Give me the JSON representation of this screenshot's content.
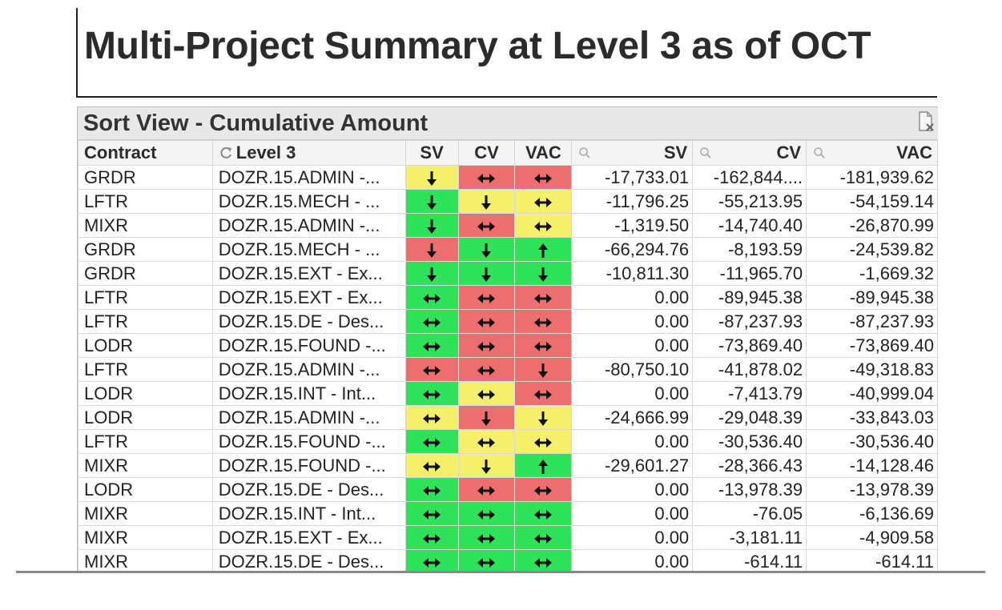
{
  "report": {
    "title": "Multi-Project Summary at Level 3 as of OCT"
  },
  "panel": {
    "caption": "Sort View - Cumulative Amount",
    "export_icon": "export-excel-icon"
  },
  "table": {
    "headers": {
      "contract": "Contract",
      "level3": "Level 3",
      "sv_ind": "SV",
      "cv_ind": "CV",
      "vac_ind": "VAC",
      "sv": "SV",
      "cv": "CV",
      "vac": "VAC"
    },
    "colors": {
      "green": "#2ee35a",
      "red": "#ec6e6e",
      "yellow": "#f5f06a"
    },
    "rows": [
      {
        "contract": "GRDR",
        "level3": "DOZR.15.ADMIN -...",
        "sv_ind": {
          "color": "yellow",
          "icon": "down-arrow-icon"
        },
        "cv_ind": {
          "color": "red",
          "icon": "left-right-arrow-icon"
        },
        "vac_ind": {
          "color": "red",
          "icon": "left-right-arrow-icon"
        },
        "sv": "-17,733.01",
        "cv": "-162,844....",
        "vac": "-181,939.62"
      },
      {
        "contract": "LFTR",
        "level3": "DOZR.15.MECH - ...",
        "sv_ind": {
          "color": "green",
          "icon": "down-arrow-icon"
        },
        "cv_ind": {
          "color": "yellow",
          "icon": "down-arrow-icon"
        },
        "vac_ind": {
          "color": "yellow",
          "icon": "left-right-arrow-icon"
        },
        "sv": "-11,796.25",
        "cv": "-55,213.95",
        "vac": "-54,159.14"
      },
      {
        "contract": "MIXR",
        "level3": "DOZR.15.ADMIN -...",
        "sv_ind": {
          "color": "green",
          "icon": "down-arrow-icon"
        },
        "cv_ind": {
          "color": "red",
          "icon": "left-right-arrow-icon"
        },
        "vac_ind": {
          "color": "yellow",
          "icon": "left-right-arrow-icon"
        },
        "sv": "-1,319.50",
        "cv": "-14,740.40",
        "vac": "-26,870.99"
      },
      {
        "contract": "GRDR",
        "level3": "DOZR.15.MECH - ...",
        "sv_ind": {
          "color": "red",
          "icon": "down-arrow-icon"
        },
        "cv_ind": {
          "color": "green",
          "icon": "down-arrow-icon"
        },
        "vac_ind": {
          "color": "green",
          "icon": "up-arrow-icon"
        },
        "sv": "-66,294.76",
        "cv": "-8,193.59",
        "vac": "-24,539.82"
      },
      {
        "contract": "GRDR",
        "level3": "DOZR.15.EXT - Ex...",
        "sv_ind": {
          "color": "green",
          "icon": "down-arrow-icon"
        },
        "cv_ind": {
          "color": "green",
          "icon": "down-arrow-icon"
        },
        "vac_ind": {
          "color": "green",
          "icon": "down-arrow-icon"
        },
        "sv": "-10,811.30",
        "cv": "-11,965.70",
        "vac": "-1,669.32"
      },
      {
        "contract": "LFTR",
        "level3": "DOZR.15.EXT - Ex...",
        "sv_ind": {
          "color": "green",
          "icon": "left-right-arrow-icon"
        },
        "cv_ind": {
          "color": "red",
          "icon": "left-right-arrow-icon"
        },
        "vac_ind": {
          "color": "red",
          "icon": "left-right-arrow-icon"
        },
        "sv": "0.00",
        "cv": "-89,945.38",
        "vac": "-89,945.38"
      },
      {
        "contract": "LFTR",
        "level3": "DOZR.15.DE - Des...",
        "sv_ind": {
          "color": "green",
          "icon": "left-right-arrow-icon"
        },
        "cv_ind": {
          "color": "red",
          "icon": "left-right-arrow-icon"
        },
        "vac_ind": {
          "color": "red",
          "icon": "left-right-arrow-icon"
        },
        "sv": "0.00",
        "cv": "-87,237.93",
        "vac": "-87,237.93"
      },
      {
        "contract": "LODR",
        "level3": "DOZR.15.FOUND -...",
        "sv_ind": {
          "color": "green",
          "icon": "left-right-arrow-icon"
        },
        "cv_ind": {
          "color": "red",
          "icon": "left-right-arrow-icon"
        },
        "vac_ind": {
          "color": "red",
          "icon": "left-right-arrow-icon"
        },
        "sv": "0.00",
        "cv": "-73,869.40",
        "vac": "-73,869.40"
      },
      {
        "contract": "LFTR",
        "level3": "DOZR.15.ADMIN -...",
        "sv_ind": {
          "color": "red",
          "icon": "left-right-arrow-icon"
        },
        "cv_ind": {
          "color": "red",
          "icon": "left-right-arrow-icon"
        },
        "vac_ind": {
          "color": "red",
          "icon": "down-arrow-icon"
        },
        "sv": "-80,750.10",
        "cv": "-41,878.02",
        "vac": "-49,318.83"
      },
      {
        "contract": "LODR",
        "level3": "DOZR.15.INT - Int...",
        "sv_ind": {
          "color": "green",
          "icon": "left-right-arrow-icon"
        },
        "cv_ind": {
          "color": "yellow",
          "icon": "left-right-arrow-icon"
        },
        "vac_ind": {
          "color": "red",
          "icon": "left-right-arrow-icon"
        },
        "sv": "0.00",
        "cv": "-7,413.79",
        "vac": "-40,999.04"
      },
      {
        "contract": "LODR",
        "level3": "DOZR.15.ADMIN -...",
        "sv_ind": {
          "color": "yellow",
          "icon": "left-right-arrow-icon"
        },
        "cv_ind": {
          "color": "red",
          "icon": "down-arrow-icon"
        },
        "vac_ind": {
          "color": "yellow",
          "icon": "down-arrow-icon"
        },
        "sv": "-24,666.99",
        "cv": "-29,048.39",
        "vac": "-33,843.03"
      },
      {
        "contract": "LFTR",
        "level3": "DOZR.15.FOUND -...",
        "sv_ind": {
          "color": "green",
          "icon": "left-right-arrow-icon"
        },
        "cv_ind": {
          "color": "yellow",
          "icon": "left-right-arrow-icon"
        },
        "vac_ind": {
          "color": "yellow",
          "icon": "left-right-arrow-icon"
        },
        "sv": "0.00",
        "cv": "-30,536.40",
        "vac": "-30,536.40"
      },
      {
        "contract": "MIXR",
        "level3": "DOZR.15.FOUND -...",
        "sv_ind": {
          "color": "yellow",
          "icon": "left-right-arrow-icon"
        },
        "cv_ind": {
          "color": "yellow",
          "icon": "down-arrow-icon"
        },
        "vac_ind": {
          "color": "green",
          "icon": "up-arrow-icon"
        },
        "sv": "-29,601.27",
        "cv": "-28,366.43",
        "vac": "-14,128.46"
      },
      {
        "contract": "LODR",
        "level3": "DOZR.15.DE - Des...",
        "sv_ind": {
          "color": "green",
          "icon": "left-right-arrow-icon"
        },
        "cv_ind": {
          "color": "red",
          "icon": "left-right-arrow-icon"
        },
        "vac_ind": {
          "color": "red",
          "icon": "left-right-arrow-icon"
        },
        "sv": "0.00",
        "cv": "-13,978.39",
        "vac": "-13,978.39"
      },
      {
        "contract": "MIXR",
        "level3": "DOZR.15.INT - Int...",
        "sv_ind": {
          "color": "green",
          "icon": "left-right-arrow-icon"
        },
        "cv_ind": {
          "color": "green",
          "icon": "left-right-arrow-icon"
        },
        "vac_ind": {
          "color": "green",
          "icon": "left-right-arrow-icon"
        },
        "sv": "0.00",
        "cv": "-76.05",
        "vac": "-6,136.69"
      },
      {
        "contract": "MIXR",
        "level3": "DOZR.15.EXT - Ex...",
        "sv_ind": {
          "color": "green",
          "icon": "left-right-arrow-icon"
        },
        "cv_ind": {
          "color": "green",
          "icon": "left-right-arrow-icon"
        },
        "vac_ind": {
          "color": "green",
          "icon": "left-right-arrow-icon"
        },
        "sv": "0.00",
        "cv": "-3,181.11",
        "vac": "-4,909.58"
      },
      {
        "contract": "MIXR",
        "level3": "DOZR.15.DE - Des...",
        "sv_ind": {
          "color": "green",
          "icon": "left-right-arrow-icon"
        },
        "cv_ind": {
          "color": "green",
          "icon": "left-right-arrow-icon"
        },
        "vac_ind": {
          "color": "green",
          "icon": "left-right-arrow-icon"
        },
        "sv": "0.00",
        "cv": "-614.11",
        "vac": "-614.11"
      }
    ]
  }
}
